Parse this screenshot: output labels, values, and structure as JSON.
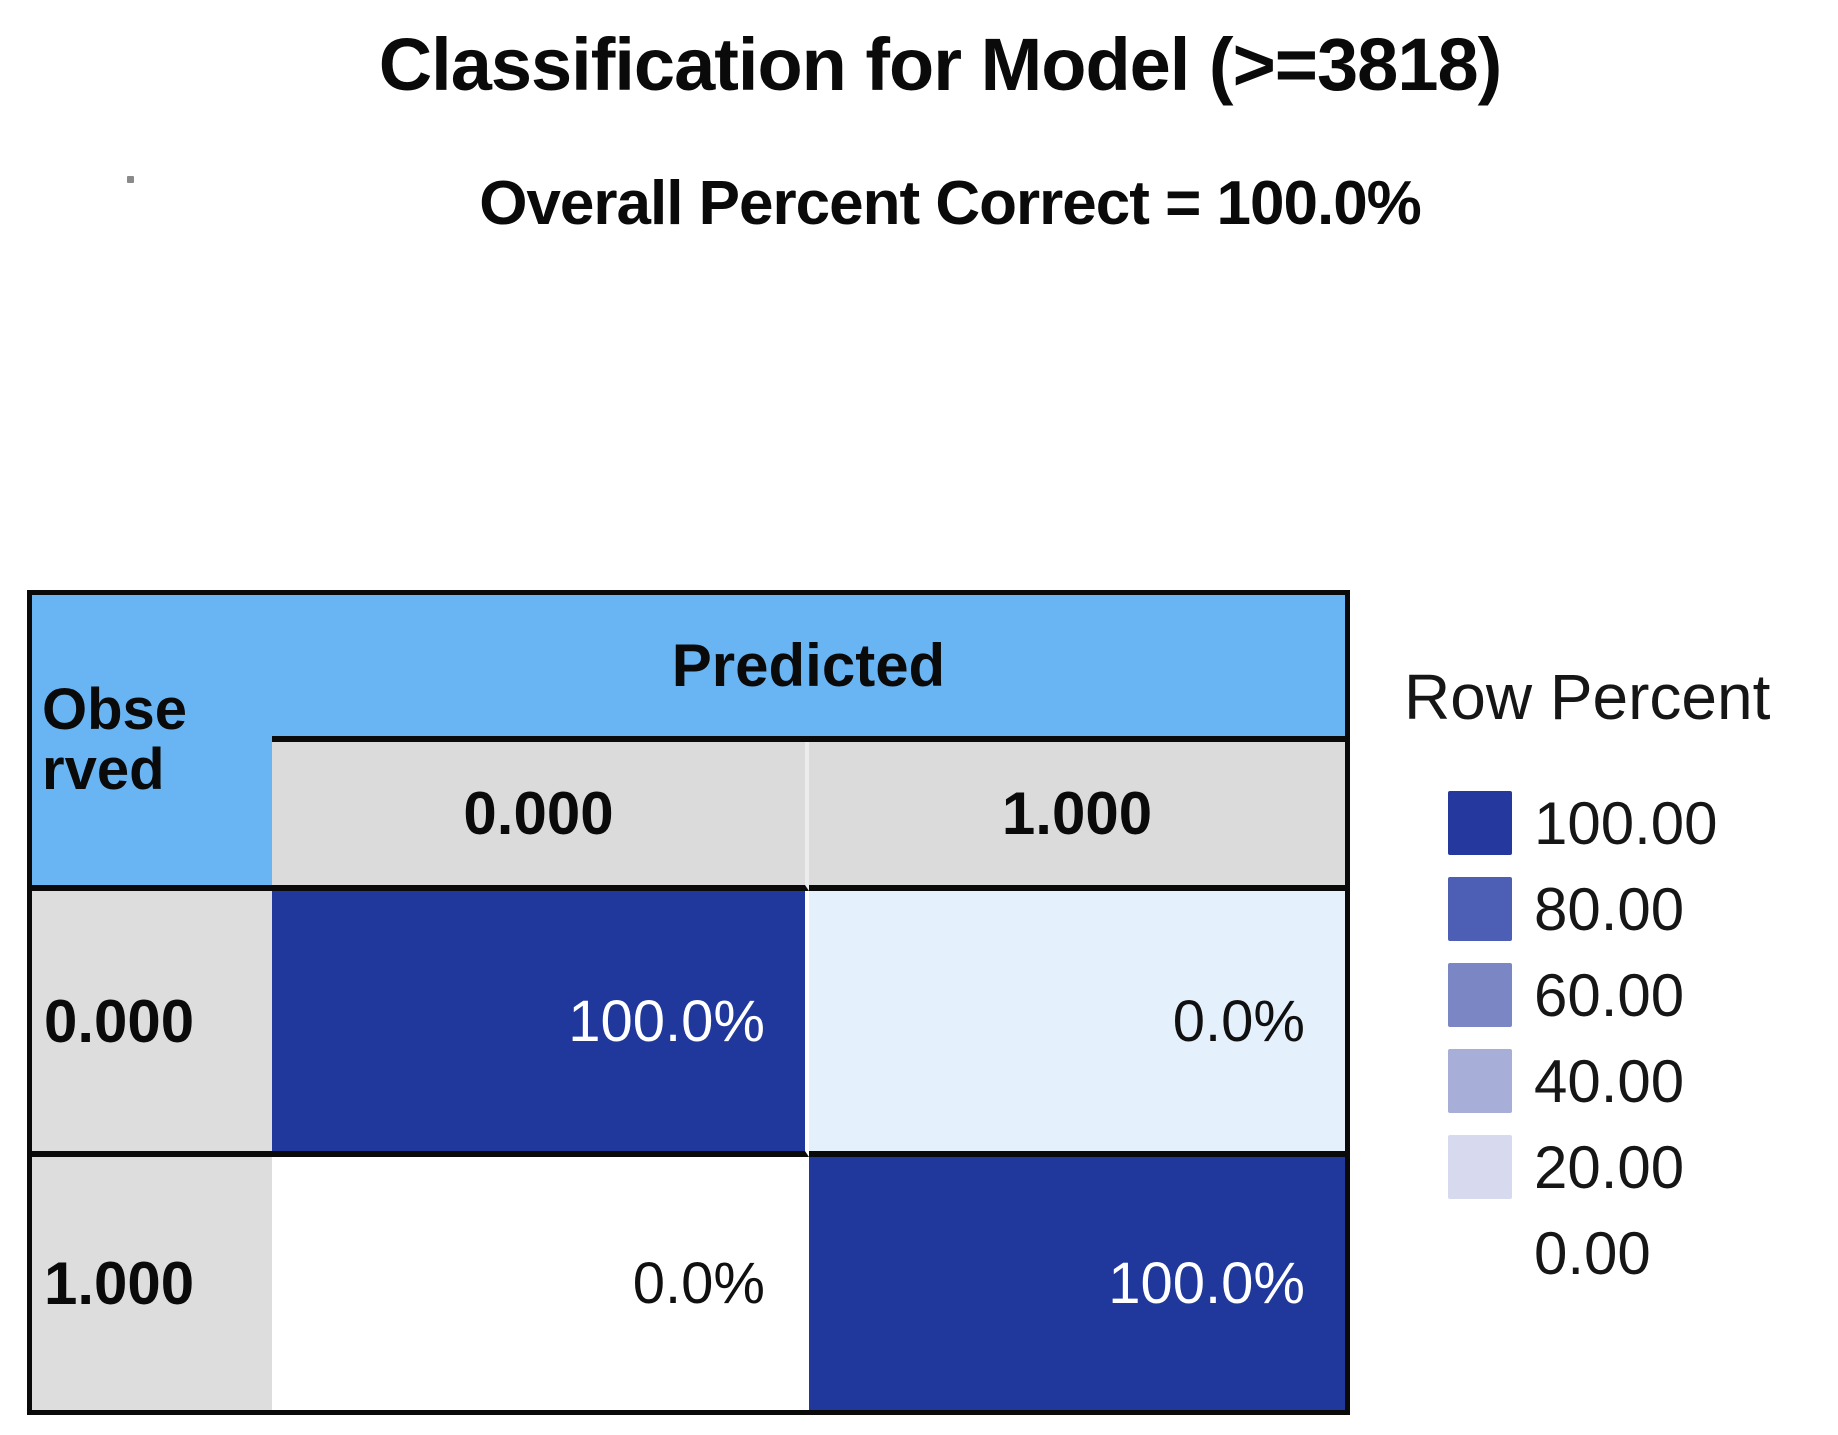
{
  "title": "Classification for Model (>=3818)",
  "subtitle": "Overall Percent Correct = 100.0%",
  "matrix": {
    "corner_label_line1": "Obse",
    "corner_label_line2": "rved",
    "corner_label_full": "Observed",
    "col_axis_label": "Predicted",
    "col_headers": [
      "0.000",
      "1.000"
    ],
    "rows": [
      {
        "label": "0.000",
        "cells": [
          {
            "text": "100.0%",
            "bg": "#20389B",
            "fg": "#FFFFFF"
          },
          {
            "text": "0.0%",
            "bg": "#E4F0FC",
            "fg": "#101010"
          }
        ]
      },
      {
        "label": "1.000",
        "cells": [
          {
            "text": "0.0%",
            "bg": "#FFFFFF",
            "fg": "#101010"
          },
          {
            "text": "100.0%",
            "bg": "#20389B",
            "fg": "#FFFFFF"
          }
        ]
      }
    ],
    "colors": {
      "axis_header_blue": "#69B5F4",
      "col_header_grey": "#DBDBDB",
      "row_label_grey": "#DDDDDD",
      "border_black": "#0A0A0A"
    }
  },
  "legend": {
    "title": "Row Percent",
    "entries": [
      {
        "label": "100.00",
        "color": "#24389D"
      },
      {
        "label": "80.00",
        "color": "#4C5FB4"
      },
      {
        "label": "60.00",
        "color": "#7B87C5"
      },
      {
        "label": "40.00",
        "color": "#A7AFD8"
      },
      {
        "label": "20.00",
        "color": "#D7DAEE"
      },
      {
        "label": "0.00",
        "color": "#FFFFFF"
      }
    ]
  },
  "chart_data": {
    "type": "heatmap",
    "title": "Classification for Model (>=3818)",
    "subtitle": "Overall Percent Correct = 100.0%",
    "overall_percent_correct": 100.0,
    "x_label": "Predicted",
    "y_label": "Observed",
    "x_categories": [
      "0.000",
      "1.000"
    ],
    "y_categories": [
      "0.000",
      "1.000"
    ],
    "values_row_percent": [
      [
        100.0,
        0.0
      ],
      [
        0.0,
        100.0
      ]
    ],
    "cell_text": [
      [
        "100.0%",
        "0.0%"
      ],
      [
        "0.0%",
        "100.0%"
      ]
    ],
    "legend": {
      "title": "Row Percent",
      "ticks": [
        100.0,
        80.0,
        60.0,
        40.0,
        20.0,
        0.0
      ],
      "position": "right"
    }
  }
}
